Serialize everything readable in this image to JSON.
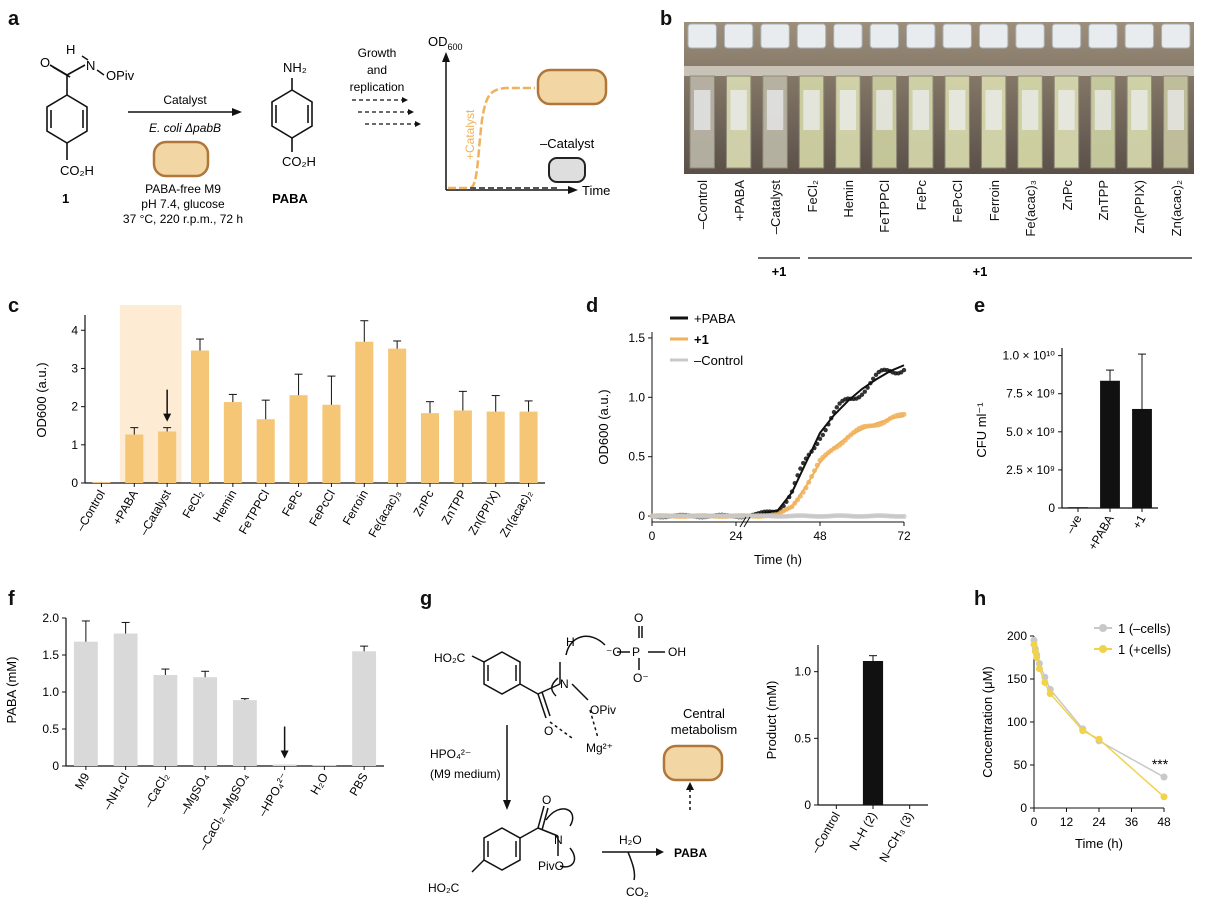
{
  "panels": {
    "a": {
      "letter": "a",
      "compound_label": "1",
      "substituent_top": "OPiv",
      "nh_label": "N",
      "h_label": "H",
      "acid_label": "CO₂H",
      "arrow_label_top": "Catalyst",
      "arrow_label_strain": "E. coli ΔpabB",
      "conditions": [
        "PABA-free M9",
        "pH 7.4, glucose",
        "37 °C, 220 r.p.m., 72 h"
      ],
      "product_nh2": "NH₂",
      "product_acid": "CO₂H",
      "product_label": "PABA",
      "growth_label": [
        "Growth",
        "and",
        "replication"
      ],
      "y_axis": "OD600",
      "x_axis": "Time",
      "plus_catalyst": "+Catalyst",
      "minus_catalyst": "–Catalyst"
    },
    "b": {
      "letter": "b",
      "tube_labels": [
        "–Control",
        "+PABA",
        "–Catalyst",
        "FeCl₂",
        "Hemin",
        "FeTPPCl",
        "FePc",
        "FePcCl",
        "Ferroin",
        "Fe(acac)₃",
        "ZnPc",
        "ZnTPP",
        "Zn(PPIX)",
        "Zn(acac)₂"
      ],
      "group1": "+1",
      "group2": "+1"
    },
    "c": {
      "letter": "c",
      "ylabel": "OD600 (a.u.)",
      "yticks": [
        "0",
        "1",
        "2",
        "3",
        "4"
      ]
    },
    "d": {
      "letter": "d",
      "ylabel": "OD600 (a.u.)",
      "xlabel": "Time (h)",
      "xticks": [
        "0",
        "24",
        "48",
        "72"
      ],
      "yticks": [
        "0",
        "0.5",
        "1.0",
        "1.5"
      ],
      "legend": [
        "+PABA",
        "+1",
        "–Control"
      ]
    },
    "e": {
      "letter": "e",
      "ylabel": "CFU ml⁻¹",
      "yticks": [
        "0",
        "2.5 × 10⁹",
        "5.0 × 10⁹",
        "7.5 × 10⁹",
        "1.0 × 10¹⁰"
      ]
    },
    "f": {
      "letter": "f",
      "ylabel": "PABA (mM)",
      "yticks": [
        "0",
        "0.5",
        "1.0",
        "1.5",
        "2.0"
      ]
    },
    "g": {
      "letter": "g",
      "phosphate_oh": "OH",
      "ho2c": "HO₂C",
      "mg": "Mg²⁺",
      "opiv": "OPiv",
      "n": "N",
      "h": "H",
      "o": "O",
      "hpo4": "HPO₄²⁻",
      "m9": "(M9 medium)",
      "pivo": "PivO",
      "water": "H₂O",
      "co2": "CO₂",
      "paba": "PABA",
      "central": [
        "Central",
        "metabolism"
      ],
      "chart_ylabel": "Product (mM)",
      "chart_yticks": [
        "0",
        "0.5",
        "1.0"
      ]
    },
    "h": {
      "letter": "h",
      "ylabel": "Concentration (μM)",
      "xlabel": "Time (h)",
      "xticks": [
        "0",
        "12",
        "24",
        "36",
        "48"
      ],
      "yticks": [
        "0",
        "50",
        "100",
        "150",
        "200"
      ],
      "legend": [
        "1 (–cells)",
        "1 (+cells)"
      ],
      "significance": "***"
    }
  },
  "colors": {
    "orange": "#f6c677",
    "orange_line": "#f0b15a",
    "shade": "#fdebd3",
    "gray_bar": "#d9d9d9",
    "black": "#111111",
    "gray_line": "#c8c8c8",
    "yellow": "#f0d34a"
  },
  "chart_data": [
    {
      "id": "c",
      "type": "bar",
      "categories": [
        "–Control",
        "+PABA",
        "–Catalyst",
        "FeCl₂",
        "Hemin",
        "FeTPPCl",
        "FePc",
        "FePcCl",
        "Ferroin",
        "Fe(acac)₃",
        "ZnPc",
        "ZnTPP",
        "Zn(PPIX)",
        "Zn(acac)₂"
      ],
      "values": [
        0.02,
        1.27,
        1.35,
        3.47,
        2.12,
        1.67,
        2.3,
        2.05,
        3.7,
        3.52,
        1.83,
        1.9,
        1.87,
        1.87
      ],
      "errors": [
        0.0,
        0.18,
        0.1,
        0.3,
        0.2,
        0.5,
        0.55,
        0.75,
        0.55,
        0.2,
        0.3,
        0.5,
        0.42,
        0.28
      ],
      "ylabel": "OD600 (a.u.)",
      "ylim": [
        0,
        4.4
      ],
      "highlight": [
        1,
        2
      ],
      "arrow_on": 2
    },
    {
      "id": "d",
      "type": "line",
      "xlabel": "Time (h)",
      "ylabel": "OD600 (a.u.)",
      "xlim": [
        0,
        72
      ],
      "ylim": [
        -0.05,
        1.55
      ],
      "series": [
        {
          "name": "+PABA",
          "x": [
            0,
            26,
            30,
            36,
            40,
            44,
            48,
            52,
            56,
            60,
            64,
            68,
            72
          ],
          "y": [
            0,
            0,
            0.01,
            0.05,
            0.2,
            0.45,
            0.7,
            0.85,
            0.97,
            1.07,
            1.15,
            1.22,
            1.27
          ]
        },
        {
          "name": "+1",
          "x": [
            0,
            30,
            36,
            40,
            44,
            48,
            52,
            56,
            60,
            64,
            68,
            72
          ],
          "y": [
            0,
            0,
            0.01,
            0.08,
            0.25,
            0.45,
            0.58,
            0.67,
            0.73,
            0.78,
            0.82,
            0.84
          ]
        },
        {
          "name": "–Control",
          "x": [
            0,
            24,
            48,
            72
          ],
          "y": [
            0,
            0,
            0,
            0
          ]
        }
      ]
    },
    {
      "id": "e",
      "type": "bar",
      "categories": [
        "–ve",
        "+PABA",
        "+1"
      ],
      "values": [
        50000000,
        8350000000,
        6500000000
      ],
      "errors": [
        0,
        700000000,
        3600000000
      ],
      "ylabel": "CFU ml⁻¹",
      "ylim": [
        0,
        10500000000
      ]
    },
    {
      "id": "f",
      "type": "bar",
      "categories": [
        "M9",
        "–NH₄Cl",
        "–CaCl₂",
        "–MgSO₄",
        "–CaCl₂ –MgSO₄",
        "–HPO₄²⁻",
        "H₂O",
        "PBS"
      ],
      "values": [
        1.68,
        1.79,
        1.23,
        1.2,
        0.89,
        0.02,
        0.01,
        1.55
      ],
      "errors": [
        0.28,
        0.15,
        0.08,
        0.08,
        0.02,
        0.0,
        0.0,
        0.07
      ],
      "ylabel": "PABA (mM)",
      "ylim": [
        0,
        2.0
      ],
      "arrow_on": 5
    },
    {
      "id": "g",
      "type": "bar",
      "categories": [
        "–Control",
        "N–H (2)",
        "N–CH₃ (3)"
      ],
      "values": [
        0,
        1.08,
        0
      ],
      "errors": [
        0,
        0.04,
        0
      ],
      "ylabel": "Product (mM)",
      "ylim": [
        0,
        1.2
      ]
    },
    {
      "id": "h",
      "type": "line",
      "xlabel": "Time (h)",
      "ylabel": "Concentration (μM)",
      "xlim": [
        0,
        48
      ],
      "ylim": [
        0,
        200
      ],
      "series": [
        {
          "name": "1 (–cells)",
          "x": [
            0,
            0.5,
            1,
            2,
            4,
            6,
            18,
            24,
            48
          ],
          "y": [
            195,
            185,
            178,
            168,
            152,
            138,
            92,
            78,
            36
          ]
        },
        {
          "name": "1 (+cells)",
          "x": [
            0,
            0.5,
            1,
            2,
            4,
            6,
            18,
            24,
            48
          ],
          "y": [
            190,
            182,
            175,
            162,
            146,
            133,
            90,
            80,
            13
          ]
        }
      ]
    }
  ]
}
